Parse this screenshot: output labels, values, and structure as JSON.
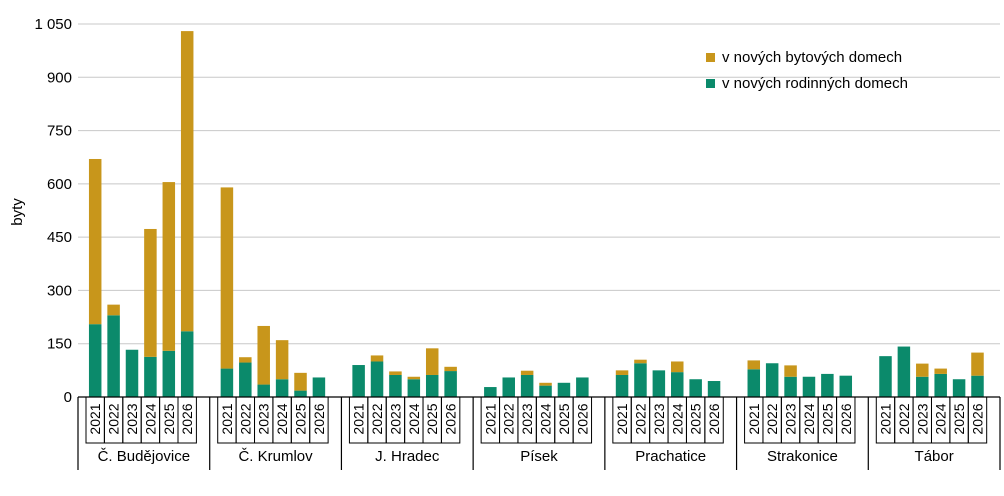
{
  "chart_data": {
    "type": "bar",
    "stacked": true,
    "ylabel": "byty",
    "ylim": [
      0,
      1050
    ],
    "yticks": [
      0,
      150,
      300,
      450,
      600,
      750,
      900,
      1050
    ],
    "ytick_labels": [
      "0",
      "150",
      "300",
      "450",
      "600",
      "750",
      "900",
      "1 050"
    ],
    "grid": true,
    "legend_position": "top-right",
    "years": [
      "2021",
      "2022",
      "2023",
      "2024",
      "2025",
      "2026"
    ],
    "groups": [
      {
        "name": "Č. Budějovice",
        "rodinne": [
          205,
          230,
          133,
          113,
          130,
          185
        ],
        "bytove": [
          465,
          30,
          0,
          360,
          475,
          845
        ]
      },
      {
        "name": "Č. Krumlov",
        "rodinne": [
          80,
          97,
          35,
          50,
          18,
          55
        ],
        "bytove": [
          510,
          15,
          165,
          110,
          50,
          0
        ]
      },
      {
        "name": "J. Hradec",
        "rodinne": [
          90,
          100,
          62,
          50,
          62,
          73
        ],
        "bytove": [
          0,
          17,
          10,
          7,
          75,
          12
        ]
      },
      {
        "name": "Písek",
        "rodinne": [
          28,
          55,
          62,
          32,
          40,
          55
        ],
        "bytove": [
          0,
          0,
          12,
          8,
          0,
          0
        ]
      },
      {
        "name": "Prachatice",
        "rodinne": [
          62,
          95,
          75,
          70,
          50,
          45
        ],
        "bytove": [
          13,
          10,
          0,
          30,
          0,
          0
        ]
      },
      {
        "name": "Strakonice",
        "rodinne": [
          78,
          95,
          57,
          57,
          65,
          60
        ],
        "bytove": [
          25,
          0,
          32,
          0,
          0,
          0
        ]
      },
      {
        "name": "Tábor",
        "rodinne": [
          115,
          142,
          57,
          65,
          50,
          60
        ],
        "bytove": [
          0,
          0,
          37,
          15,
          0,
          65
        ]
      }
    ],
    "series": [
      {
        "key": "bytove",
        "name": "v nových bytových domech",
        "color": "#c8961b"
      },
      {
        "key": "rodinne",
        "name": "v nových rodinných domech",
        "color": "#0b8a6b"
      }
    ]
  }
}
